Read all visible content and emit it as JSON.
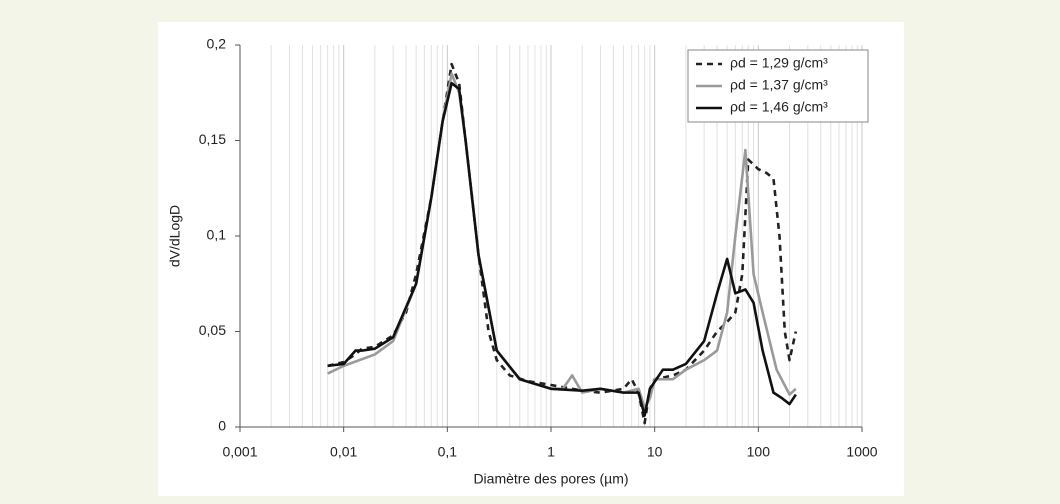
{
  "chart_data": {
    "type": "line",
    "x_label": "Diamètre des pores (µm)",
    "y_label": "dV/dLogD",
    "xlog": true,
    "xgrid": true,
    "xminorgrid": true,
    "xlim": [
      0.001,
      1000
    ],
    "xticks": [
      {
        "value": 0.001,
        "label": "0,001"
      },
      {
        "value": 0.01,
        "label": "0,01"
      },
      {
        "value": 0.1,
        "label": "0,1"
      },
      1,
      10,
      100,
      1000
    ],
    "ylim": [
      0,
      0.2
    ],
    "yticks": [
      0,
      {
        "value": 0.05,
        "label": "0,05"
      },
      {
        "value": 0.1,
        "label": "0,1"
      },
      {
        "value": 0.15,
        "label": "0,15"
      },
      {
        "value": 0.2,
        "label": "0,2"
      }
    ],
    "legend": "top-right",
    "series": [
      {
        "name": "ρd = 1,29 g/cm³",
        "color": "#222222",
        "dash": true,
        "x": [
          0.007,
          0.01,
          0.013,
          0.015,
          0.02,
          0.03,
          0.04,
          0.05,
          0.07,
          0.09,
          0.11,
          0.13,
          0.15,
          0.2,
          0.25,
          0.3,
          0.4,
          0.6,
          1,
          2,
          3,
          5,
          6,
          7,
          8,
          9,
          10,
          15,
          20,
          30,
          40,
          50,
          60,
          70,
          80,
          100,
          120,
          140,
          160,
          180,
          200,
          230
        ],
        "values": [
          0.032,
          0.034,
          0.038,
          0.041,
          0.042,
          0.048,
          0.06,
          0.08,
          0.12,
          0.16,
          0.19,
          0.18,
          0.15,
          0.09,
          0.05,
          0.035,
          0.027,
          0.024,
          0.022,
          0.019,
          0.018,
          0.02,
          0.025,
          0.018,
          0.002,
          0.02,
          0.025,
          0.027,
          0.03,
          0.04,
          0.05,
          0.055,
          0.06,
          0.08,
          0.14,
          0.135,
          0.133,
          0.13,
          0.1,
          0.05,
          0.035,
          0.05
        ]
      },
      {
        "name": "ρd = 1,37 g/cm³",
        "color": "#9a9a9a",
        "dash": false,
        "x": [
          0.007,
          0.01,
          0.02,
          0.03,
          0.05,
          0.07,
          0.09,
          0.11,
          0.13,
          0.15,
          0.2,
          0.3,
          0.5,
          1,
          1.3,
          1.6,
          2,
          3,
          5,
          7,
          8,
          9,
          10,
          15,
          20,
          30,
          40,
          50,
          60,
          75,
          90,
          110,
          150,
          200,
          230
        ],
        "values": [
          0.028,
          0.032,
          0.038,
          0.045,
          0.075,
          0.12,
          0.16,
          0.185,
          0.175,
          0.15,
          0.09,
          0.04,
          0.025,
          0.02,
          0.02,
          0.027,
          0.018,
          0.02,
          0.018,
          0.02,
          0.01,
          0.015,
          0.025,
          0.025,
          0.03,
          0.035,
          0.04,
          0.06,
          0.1,
          0.145,
          0.08,
          0.06,
          0.03,
          0.017,
          0.02
        ]
      },
      {
        "name": "ρd = 1,46 g/cm³",
        "color": "#111111",
        "dash": false,
        "x": [
          0.007,
          0.01,
          0.013,
          0.015,
          0.02,
          0.03,
          0.05,
          0.07,
          0.09,
          0.11,
          0.13,
          0.15,
          0.2,
          0.3,
          0.5,
          1,
          2,
          3,
          5,
          7,
          8,
          9,
          12,
          15,
          20,
          30,
          40,
          50,
          60,
          75,
          90,
          110,
          140,
          170,
          200,
          230
        ],
        "values": [
          0.032,
          0.033,
          0.04,
          0.04,
          0.041,
          0.047,
          0.075,
          0.12,
          0.16,
          0.18,
          0.177,
          0.15,
          0.09,
          0.04,
          0.025,
          0.02,
          0.019,
          0.02,
          0.018,
          0.018,
          0.006,
          0.02,
          0.03,
          0.03,
          0.033,
          0.045,
          0.07,
          0.088,
          0.07,
          0.072,
          0.065,
          0.04,
          0.018,
          0.015,
          0.012,
          0.017
        ]
      }
    ]
  }
}
